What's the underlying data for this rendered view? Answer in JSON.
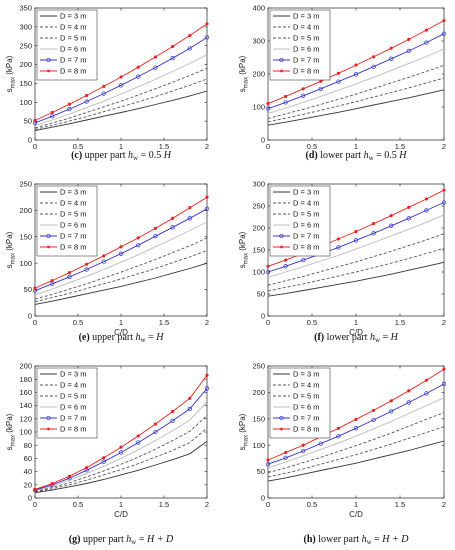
{
  "series_style": {
    "D = 3 m": {
      "color": "#333333",
      "dash": "",
      "marker": "none"
    },
    "D = 4 m": {
      "color": "#555555",
      "dash": "3,2",
      "marker": "none"
    },
    "D = 5 m": {
      "color": "#555555",
      "dash": "3,2",
      "marker": "none"
    },
    "D = 6 m": {
      "color": "#bbbbbb",
      "dash": "",
      "marker": "none"
    },
    "D = 7 m": {
      "color": "#3333cc",
      "dash": "",
      "marker": "circle"
    },
    "D = 8 m": {
      "color": "#ee2222",
      "dash": "",
      "marker": "dot"
    }
  },
  "chart_data": [
    {
      "type": "line",
      "caption": {
        "letter": "(c)",
        "text": "upper part",
        "var": "h",
        "sub": "w",
        "rest": "= 0.5",
        "italic": "H"
      },
      "xlabel": "",
      "ylabel": "s",
      "ylabel_sub": "max",
      "ylabel_unit": "(kPa)",
      "xlim": [
        0,
        2
      ],
      "ylim": [
        0,
        350
      ],
      "xticks": [
        "0",
        "0.5",
        "1",
        "1.5",
        "2"
      ],
      "yticks": [
        "0",
        "50",
        "100",
        "150",
        "200",
        "250",
        "300",
        "350"
      ],
      "legend": "top-left",
      "grid": false,
      "x": [
        0,
        0.2,
        0.4,
        0.6,
        0.8,
        1.0,
        1.2,
        1.4,
        1.6,
        1.8,
        2.0
      ],
      "series": [
        {
          "name": "D = 3 m",
          "values": [
            25,
            34,
            43,
            53,
            63,
            73,
            83,
            94,
            105,
            117,
            130
          ]
        },
        {
          "name": "D = 4 m",
          "values": [
            28,
            39,
            50,
            62,
            75,
            88,
            101,
            115,
            130,
            145,
            162
          ]
        },
        {
          "name": "D = 5 m",
          "values": [
            32,
            45,
            58,
            73,
            88,
            103,
            119,
            136,
            153,
            171,
            190
          ]
        },
        {
          "name": "D = 6 m",
          "values": [
            38,
            53,
            69,
            86,
            103,
            122,
            141,
            161,
            182,
            203,
            226
          ]
        },
        {
          "name": "D = 7 m",
          "values": [
            45,
            63,
            82,
            102,
            123,
            145,
            168,
            192,
            217,
            243,
            272
          ]
        },
        {
          "name": "D = 8 m",
          "values": [
            52,
            73,
            95,
            118,
            142,
            167,
            193,
            220,
            248,
            277,
            308
          ]
        }
      ]
    },
    {
      "type": "line",
      "caption": {
        "letter": "(d)",
        "text": "lower part",
        "var": "h",
        "sub": "w",
        "rest": "= 0.5",
        "italic": "H"
      },
      "xlabel": "",
      "ylabel": "s",
      "ylabel_sub": "max",
      "ylabel_unit": "(kPa)",
      "xlim": [
        0,
        2
      ],
      "ylim": [
        0,
        400
      ],
      "xticks": [
        "0",
        "0.5",
        "1",
        "1.5",
        "2"
      ],
      "yticks": [
        "0",
        "100",
        "200",
        "300",
        "400"
      ],
      "legend": "top-left",
      "grid": false,
      "x": [
        0,
        0.2,
        0.4,
        0.6,
        0.8,
        1.0,
        1.2,
        1.4,
        1.6,
        1.8,
        2.0
      ],
      "series": [
        {
          "name": "D = 3 m",
          "values": [
            45,
            54,
            64,
            74,
            84,
            95,
            106,
            117,
            128,
            140,
            152
          ]
        },
        {
          "name": "D = 4 m",
          "values": [
            55,
            66,
            78,
            90,
            103,
            116,
            130,
            144,
            158,
            173,
            188
          ]
        },
        {
          "name": "D = 5 m",
          "values": [
            65,
            79,
            93,
            108,
            123,
            139,
            156,
            173,
            190,
            208,
            226
          ]
        },
        {
          "name": "D = 6 m",
          "values": [
            80,
            97,
            114,
            132,
            151,
            170,
            190,
            211,
            232,
            253,
            276
          ]
        },
        {
          "name": "D = 7 m",
          "values": [
            95,
            114,
            134,
            155,
            177,
            199,
            222,
            246,
            270,
            295,
            322
          ]
        },
        {
          "name": "D = 8 m",
          "values": [
            110,
            132,
            155,
            178,
            202,
            227,
            252,
            278,
            305,
            333,
            362
          ]
        }
      ]
    },
    {
      "type": "line",
      "caption": {
        "letter": "(e)",
        "text": "upper part",
        "var": "h",
        "sub": "w",
        "rest": "=",
        "italic": "H"
      },
      "xlabel": "C/D",
      "ylabel": "s",
      "ylabel_sub": "max",
      "ylabel_unit": "(kPa)",
      "xlim": [
        0,
        2
      ],
      "ylim": [
        0,
        250
      ],
      "xticks": [
        "0",
        "0.5",
        "1",
        "1.5",
        "2"
      ],
      "yticks": [
        "0",
        "50",
        "100",
        "150",
        "200",
        "250"
      ],
      "legend": "top-left",
      "grid": false,
      "x": [
        0,
        0.2,
        0.4,
        0.6,
        0.8,
        1.0,
        1.2,
        1.4,
        1.6,
        1.8,
        2.0
      ],
      "series": [
        {
          "name": "D = 3 m",
          "values": [
            22,
            28,
            35,
            42,
            49,
            56,
            64,
            72,
            81,
            90,
            100
          ]
        },
        {
          "name": "D = 4 m",
          "values": [
            27,
            35,
            43,
            52,
            61,
            70,
            80,
            90,
            101,
            112,
            124
          ]
        },
        {
          "name": "D = 5 m",
          "values": [
            32,
            41,
            51,
            61,
            72,
            83,
            95,
            107,
            120,
            133,
            148
          ]
        },
        {
          "name": "D = 6 m",
          "values": [
            40,
            51,
            63,
            75,
            88,
            102,
            116,
            131,
            146,
            162,
            178
          ]
        },
        {
          "name": "D = 7 m",
          "values": [
            48,
            61,
            74,
            88,
            103,
            118,
            134,
            151,
            168,
            185,
            203
          ]
        },
        {
          "name": "D = 8 m",
          "values": [
            53,
            67,
            82,
            98,
            114,
            131,
            148,
            166,
            185,
            205,
            225
          ]
        }
      ]
    },
    {
      "type": "line",
      "caption": {
        "letter": "(f)",
        "text": "lower part",
        "var": "h",
        "sub": "w",
        "rest": "=",
        "italic": "H"
      },
      "xlabel": "C/D",
      "ylabel": "s",
      "ylabel_sub": "max",
      "ylabel_unit": "(kPa)",
      "xlim": [
        0,
        2
      ],
      "ylim": [
        0,
        300
      ],
      "xticks": [
        "0",
        "0.5",
        "1",
        "1.5",
        "2"
      ],
      "yticks": [
        "0",
        "50",
        "100",
        "150",
        "200",
        "250",
        "300"
      ],
      "legend": "top-left",
      "grid": false,
      "x": [
        0,
        0.2,
        0.4,
        0.6,
        0.8,
        1.0,
        1.2,
        1.4,
        1.6,
        1.8,
        2.0
      ],
      "series": [
        {
          "name": "D = 3 m",
          "values": [
            45,
            51,
            58,
            65,
            72,
            79,
            87,
            95,
            104,
            113,
            122
          ]
        },
        {
          "name": "D = 4 m",
          "values": [
            57,
            65,
            73,
            82,
            91,
            100,
            110,
            120,
            131,
            142,
            154
          ]
        },
        {
          "name": "D = 5 m",
          "values": [
            70,
            80,
            90,
            101,
            112,
            123,
            135,
            147,
            160,
            173,
            187
          ]
        },
        {
          "name": "D = 6 m",
          "values": [
            88,
            100,
            112,
            125,
            138,
            152,
            167,
            182,
            197,
            213,
            230
          ]
        },
        {
          "name": "D = 7 m",
          "values": [
            100,
            113,
            127,
            141,
            156,
            172,
            188,
            205,
            222,
            240,
            258
          ]
        },
        {
          "name": "D = 8 m",
          "values": [
            113,
            127,
            142,
            158,
            175,
            192,
            210,
            228,
            247,
            266,
            286
          ]
        }
      ]
    },
    {
      "type": "line",
      "caption": {
        "letter": "(g)",
        "text": "upper part",
        "var": "h",
        "sub": "w",
        "rest": "=",
        "italic": "H + D"
      },
      "xlabel": "C/D",
      "ylabel": "s",
      "ylabel_sub": "max",
      "ylabel_unit": "(kPa)",
      "xlim": [
        0,
        2
      ],
      "ylim": [
        0,
        200
      ],
      "xticks": [
        "0",
        "0.5",
        "1",
        "1.5",
        "2"
      ],
      "yticks": [
        "0",
        "20",
        "40",
        "60",
        "80",
        "100",
        "120",
        "140",
        "160",
        "180",
        "200"
      ],
      "legend": "top-left",
      "grid": false,
      "x": [
        0,
        0.2,
        0.4,
        0.6,
        0.8,
        1.0,
        1.2,
        1.4,
        1.6,
        1.8,
        2.0
      ],
      "series": [
        {
          "name": "D = 3 m",
          "values": [
            8,
            12,
            17,
            22,
            28,
            35,
            42,
            50,
            58,
            67,
            86
          ]
        },
        {
          "name": "D = 4 m",
          "values": [
            9,
            14,
            20,
            27,
            35,
            43,
            52,
            62,
            72,
            84,
            106
          ]
        },
        {
          "name": "D = 5 m",
          "values": [
            10,
            16,
            23,
            32,
            41,
            51,
            62,
            74,
            87,
            101,
            125
          ]
        },
        {
          "name": "D = 6 m",
          "values": [
            11,
            18,
            27,
            37,
            48,
            60,
            73,
            87,
            102,
            118,
            146
          ]
        },
        {
          "name": "D = 7 m",
          "values": [
            12,
            20,
            30,
            42,
            55,
            69,
            84,
            100,
            117,
            135,
            166
          ]
        },
        {
          "name": "D = 8 m",
          "values": [
            13,
            22,
            33,
            46,
            61,
            77,
            94,
            112,
            131,
            151,
            186
          ]
        }
      ]
    },
    {
      "type": "line",
      "caption": {
        "letter": "(h)",
        "text": "lower part",
        "var": "h",
        "sub": "w",
        "rest": "=",
        "italic": "H + D"
      },
      "xlabel": "C/D",
      "ylabel": "s",
      "ylabel_sub": "max",
      "ylabel_unit": "(kPa)",
      "xlim": [
        0,
        2
      ],
      "ylim": [
        0,
        250
      ],
      "xticks": [
        "0",
        "0.5",
        "1",
        "1.5",
        "2"
      ],
      "yticks": [
        "0",
        "50",
        "100",
        "150",
        "200",
        "250"
      ],
      "legend": "top-left",
      "grid": false,
      "x": [
        0,
        0.2,
        0.4,
        0.6,
        0.8,
        1.0,
        1.2,
        1.4,
        1.6,
        1.8,
        2.0
      ],
      "series": [
        {
          "name": "D = 3 m",
          "values": [
            32,
            38,
            45,
            52,
            59,
            66,
            74,
            82,
            90,
            99,
            108
          ]
        },
        {
          "name": "D = 4 m",
          "values": [
            40,
            47,
            55,
            64,
            73,
            82,
            92,
            102,
            113,
            124,
            135
          ]
        },
        {
          "name": "D = 5 m",
          "values": [
            48,
            57,
            67,
            77,
            88,
            99,
            111,
            123,
            136,
            149,
            162
          ]
        },
        {
          "name": "D = 6 m",
          "values": [
            57,
            68,
            80,
            92,
            104,
            117,
            131,
            145,
            160,
            175,
            190
          ]
        },
        {
          "name": "D = 7 m",
          "values": [
            64,
            76,
            89,
            103,
            117,
            132,
            148,
            164,
            181,
            198,
            216
          ]
        },
        {
          "name": "D = 8 m",
          "values": [
            72,
            86,
            100,
            116,
            132,
            149,
            166,
            184,
            203,
            223,
            244
          ]
        }
      ]
    }
  ]
}
